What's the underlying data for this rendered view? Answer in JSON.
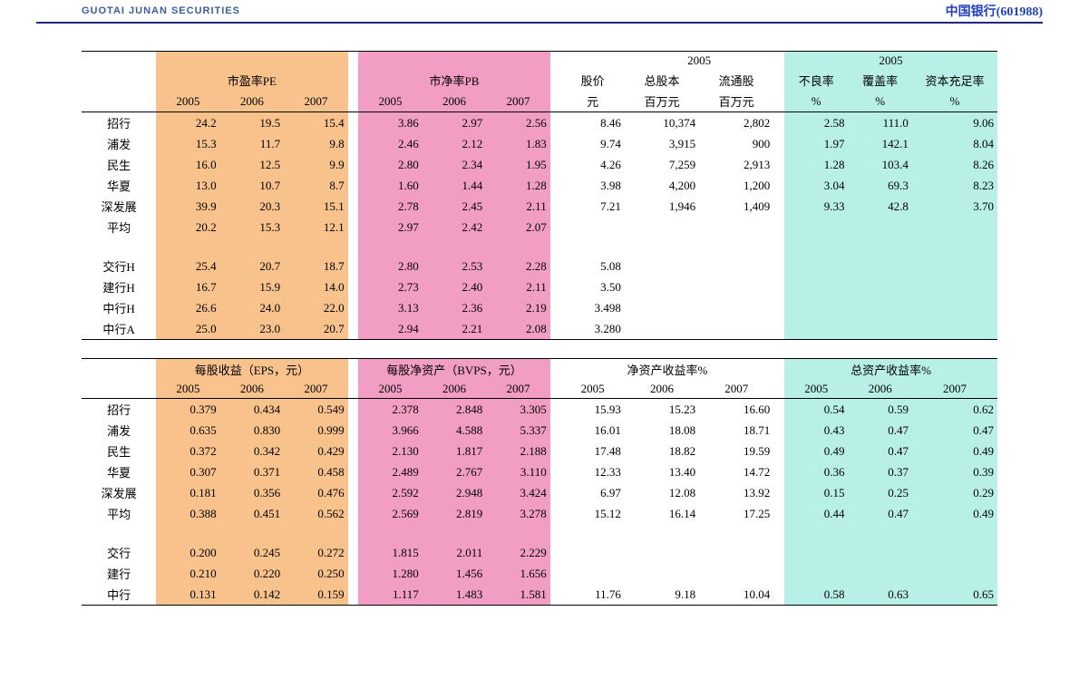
{
  "header": {
    "brand": "GUOTAI JUNAN SECURITIES",
    "ticker": "中国银行(601988)"
  },
  "colors": {
    "pe_bg": "#f8c28d",
    "pb_bg": "#f29ec4",
    "ratio_bg": "#b8f0e8",
    "rule": "#1a2a7a"
  },
  "labels": {
    "pe": "市盈率PE",
    "pb": "市净率PB",
    "price": "股价",
    "total_shares": "总股本",
    "float_shares": "流通股",
    "npl": "不良率",
    "coverage": "覆盖率",
    "car": "资本充足率",
    "eps": "每股收益（EPS，元）",
    "bvps": "每股净资产（BVPS，元）",
    "roe": "净资产收益率%",
    "roa": "总资产收益率%",
    "yuan": "元",
    "million_yuan": "百万元",
    "pct": "%",
    "y2005": "2005",
    "y2006": "2006",
    "y2007": "2007"
  },
  "banks_top": [
    "招行",
    "浦发",
    "民生",
    "华夏",
    "深发展",
    "平均",
    "",
    "交行H",
    "建行H",
    "中行H",
    "中行A"
  ],
  "banks_bot": [
    "招行",
    "浦发",
    "民生",
    "华夏",
    "深发展",
    "平均",
    "",
    "交行",
    "建行",
    "中行"
  ],
  "table1": {
    "pe": [
      [
        "24.2",
        "19.5",
        "15.4"
      ],
      [
        "15.3",
        "11.7",
        "9.8"
      ],
      [
        "16.0",
        "12.5",
        "9.9"
      ],
      [
        "13.0",
        "10.7",
        "8.7"
      ],
      [
        "39.9",
        "20.3",
        "15.1"
      ],
      [
        "20.2",
        "15.3",
        "12.1"
      ],
      [
        "",
        "",
        ""
      ],
      [
        "25.4",
        "20.7",
        "18.7"
      ],
      [
        "16.7",
        "15.9",
        "14.0"
      ],
      [
        "26.6",
        "24.0",
        "22.0"
      ],
      [
        "25.0",
        "23.0",
        "20.7"
      ]
    ],
    "pb": [
      [
        "3.86",
        "2.97",
        "2.56"
      ],
      [
        "2.46",
        "2.12",
        "1.83"
      ],
      [
        "2.80",
        "2.34",
        "1.95"
      ],
      [
        "1.60",
        "1.44",
        "1.28"
      ],
      [
        "2.78",
        "2.45",
        "2.11"
      ],
      [
        "2.97",
        "2.42",
        "2.07"
      ],
      [
        "",
        "",
        ""
      ],
      [
        "2.80",
        "2.53",
        "2.28"
      ],
      [
        "2.73",
        "2.40",
        "2.11"
      ],
      [
        "3.13",
        "2.36",
        "2.19"
      ],
      [
        "2.94",
        "2.21",
        "2.08"
      ]
    ],
    "price": [
      "8.46",
      "9.74",
      "4.26",
      "3.98",
      "7.21",
      "",
      "",
      "5.08",
      "3.50",
      "3.498",
      "3.280"
    ],
    "total": [
      "10,374",
      "3,915",
      "7,259",
      "4,200",
      "1,946",
      "",
      "",
      "",
      "",
      "",
      ""
    ],
    "float": [
      "2,802",
      "900",
      "2,913",
      "1,200",
      "1,409",
      "",
      "",
      "",
      "",
      "",
      ""
    ],
    "npl": [
      "2.58",
      "1.97",
      "1.28",
      "3.04",
      "9.33",
      "",
      "",
      "",
      "",
      "",
      ""
    ],
    "cov": [
      "111.0",
      "142.1",
      "103.4",
      "69.3",
      "42.8",
      "",
      "",
      "",
      "",
      "",
      ""
    ],
    "car": [
      "9.06",
      "8.04",
      "8.26",
      "8.23",
      "3.70",
      "",
      "",
      "",
      "",
      "",
      ""
    ]
  },
  "table2": {
    "eps": [
      [
        "0.379",
        "0.434",
        "0.549"
      ],
      [
        "0.635",
        "0.830",
        "0.999"
      ],
      [
        "0.372",
        "0.342",
        "0.429"
      ],
      [
        "0.307",
        "0.371",
        "0.458"
      ],
      [
        "0.181",
        "0.356",
        "0.476"
      ],
      [
        "0.388",
        "0.451",
        "0.562"
      ],
      [
        "",
        "",
        ""
      ],
      [
        "0.200",
        "0.245",
        "0.272"
      ],
      [
        "0.210",
        "0.220",
        "0.250"
      ],
      [
        "0.131",
        "0.142",
        "0.159"
      ]
    ],
    "bvps": [
      [
        "2.378",
        "2.848",
        "3.305"
      ],
      [
        "3.966",
        "4.588",
        "5.337"
      ],
      [
        "2.130",
        "1.817",
        "2.188"
      ],
      [
        "2.489",
        "2.767",
        "3.110"
      ],
      [
        "2.592",
        "2.948",
        "3.424"
      ],
      [
        "2.569",
        "2.819",
        "3.278"
      ],
      [
        "",
        "",
        ""
      ],
      [
        "1.815",
        "2.011",
        "2.229"
      ],
      [
        "1.280",
        "1.456",
        "1.656"
      ],
      [
        "1.117",
        "1.483",
        "1.581"
      ]
    ],
    "roe": [
      [
        "15.93",
        "15.23",
        "16.60"
      ],
      [
        "16.01",
        "18.08",
        "18.71"
      ],
      [
        "17.48",
        "18.82",
        "19.59"
      ],
      [
        "12.33",
        "13.40",
        "14.72"
      ],
      [
        "6.97",
        "12.08",
        "13.92"
      ],
      [
        "15.12",
        "16.14",
        "17.25"
      ],
      [
        "",
        "",
        ""
      ],
      [
        "",
        "",
        ""
      ],
      [
        "",
        "",
        ""
      ],
      [
        "11.76",
        "9.18",
        "10.04"
      ]
    ],
    "roa": [
      [
        "0.54",
        "0.59",
        "0.62"
      ],
      [
        "0.43",
        "0.47",
        "0.47"
      ],
      [
        "0.49",
        "0.47",
        "0.49"
      ],
      [
        "0.36",
        "0.37",
        "0.39"
      ],
      [
        "0.15",
        "0.25",
        "0.29"
      ],
      [
        "0.44",
        "0.47",
        "0.49"
      ],
      [
        "",
        "",
        ""
      ],
      [
        "",
        "",
        ""
      ],
      [
        "",
        "",
        ""
      ],
      [
        "0.58",
        "0.63",
        "0.65"
      ]
    ]
  }
}
